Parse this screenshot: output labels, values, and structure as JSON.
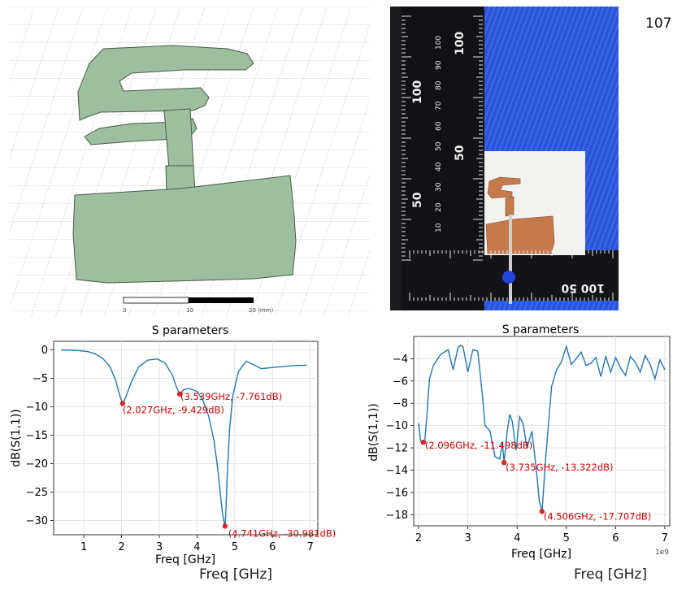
{
  "page_number": "107",
  "cad_view": {
    "scale_labels": [
      "0",
      "10",
      "20 (mm)"
    ]
  },
  "photo": {
    "ruler_labels": [
      "10",
      "20",
      "30",
      "40",
      "50",
      "60",
      "70",
      "80",
      "90",
      "100"
    ],
    "ruler_big_labels": [
      "50",
      "100"
    ]
  },
  "cropped_labels": [
    "Freq [GHz]",
    "Freq [GHz]"
  ],
  "colors": {
    "line": "#2077b4",
    "marker": "#d62728",
    "annotation": "#d20000",
    "antenna": "#9dbf9d"
  },
  "chart_data": [
    {
      "type": "line",
      "title": "S parameters",
      "xlabel": "Freq [GHz]",
      "ylabel": "dB(S(1,1))",
      "xlim": [
        0.2,
        7.2
      ],
      "ylim": [
        -32.5,
        1.5
      ],
      "xticks": [
        1,
        2,
        3,
        4,
        5,
        6,
        7
      ],
      "yticks": [
        0,
        -5,
        -10,
        -15,
        -20,
        -25,
        -30
      ],
      "xtick_labels": [
        "1",
        "2",
        "3",
        "4",
        "5",
        "6",
        "7"
      ],
      "ytick_labels": [
        "0",
        "−5",
        "−10",
        "−15",
        "−20",
        "−25",
        "−30"
      ],
      "grid": true,
      "x": [
        0.4,
        0.8,
        1.1,
        1.3,
        1.5,
        1.7,
        1.85,
        1.95,
        2.027,
        2.1,
        2.25,
        2.45,
        2.7,
        2.95,
        3.15,
        3.35,
        3.45,
        3.539,
        3.65,
        3.8,
        4.0,
        4.15,
        4.3,
        4.45,
        4.55,
        4.62,
        4.68,
        4.72,
        4.741,
        4.76,
        4.8,
        4.86,
        4.95,
        5.1,
        5.3,
        5.5,
        5.7,
        6.0,
        6.5,
        6.9
      ],
      "y": [
        0.0,
        -0.1,
        -0.3,
        -0.7,
        -1.5,
        -3.0,
        -5.5,
        -8.0,
        -9.429,
        -8.5,
        -5.8,
        -3.0,
        -1.8,
        -1.6,
        -2.3,
        -4.5,
        -6.5,
        -7.761,
        -7.0,
        -6.8,
        -7.3,
        -8.8,
        -11.5,
        -16.0,
        -21.0,
        -25.5,
        -29.0,
        -30.5,
        -30.981,
        -29.0,
        -22.0,
        -14.0,
        -8.0,
        -3.8,
        -2.0,
        -2.6,
        -3.3,
        -3.1,
        -2.8,
        -2.7
      ],
      "markers": [
        {
          "x": 2.027,
          "y": -9.429,
          "label": "(2.027GHz, -9.429dB)"
        },
        {
          "x": 3.539,
          "y": -7.761,
          "label": "(3.539GHz, -7.761dB)"
        },
        {
          "x": 4.741,
          "y": -30.981,
          "label": "(4.741GHz, -30.981dB)"
        }
      ]
    },
    {
      "type": "line",
      "title": "S parameters",
      "xlabel": "Freq [GHz]",
      "ylabel": "dB(S(1,1))",
      "x_offset_label": "1e9",
      "xlim": [
        1.9,
        7.1
      ],
      "ylim": [
        -19.0,
        -2.0
      ],
      "xticks": [
        2,
        3,
        4,
        5,
        6,
        7
      ],
      "yticks": [
        -4,
        -6,
        -8,
        -10,
        -12,
        -14,
        -16,
        -18
      ],
      "xtick_labels": [
        "2",
        "3",
        "4",
        "5",
        "6",
        "7"
      ],
      "ytick_labels": [
        "−4",
        "−6",
        "−8",
        "−10",
        "−12",
        "−14",
        "−16",
        "−18"
      ],
      "grid": true,
      "x": [
        2.0,
        2.04,
        2.07,
        2.096,
        2.12,
        2.16,
        2.22,
        2.3,
        2.45,
        2.6,
        2.7,
        2.8,
        2.85,
        2.9,
        3.0,
        3.1,
        3.2,
        3.3,
        3.35,
        3.45,
        3.55,
        3.65,
        3.7,
        3.735,
        3.8,
        3.85,
        3.9,
        3.98,
        4.05,
        4.12,
        4.2,
        4.3,
        4.38,
        4.45,
        4.506,
        4.58,
        4.7,
        4.8,
        4.9,
        5.0,
        5.1,
        5.2,
        5.3,
        5.4,
        5.5,
        5.6,
        5.7,
        5.8,
        5.9,
        6.0,
        6.1,
        6.2,
        6.3,
        6.4,
        6.5,
        6.6,
        6.7,
        6.8,
        6.9,
        7.0
      ],
      "y": [
        -9.8,
        -11.4,
        -11.5,
        -11.498,
        -11.6,
        -9.5,
        -5.8,
        -4.6,
        -3.6,
        -3.2,
        -5.0,
        -3.0,
        -2.8,
        -2.9,
        -5.2,
        -3.2,
        -3.3,
        -7.5,
        -10.0,
        -10.5,
        -12.8,
        -13.0,
        -11.5,
        -13.322,
        -10.5,
        -9.0,
        -9.6,
        -12.2,
        -9.2,
        -9.8,
        -12.0,
        -10.5,
        -13.5,
        -16.8,
        -17.707,
        -13.0,
        -6.5,
        -5.0,
        -4.3,
        -2.9,
        -4.5,
        -4.0,
        -3.4,
        -4.6,
        -4.4,
        -3.9,
        -5.6,
        -3.8,
        -5.2,
        -3.9,
        -4.8,
        -5.5,
        -3.8,
        -4.3,
        -5.2,
        -3.7,
        -4.5,
        -5.8,
        -4.1,
        -5.0
      ],
      "markers": [
        {
          "x": 2.096,
          "y": -11.498,
          "label": "(2.096GHz, -11.498dB)"
        },
        {
          "x": 3.735,
          "y": -13.322,
          "label": "(3.735GHz, -13.322dB)"
        },
        {
          "x": 4.506,
          "y": -17.707,
          "label": "(4.506GHz, -17.707dB)"
        }
      ]
    }
  ]
}
